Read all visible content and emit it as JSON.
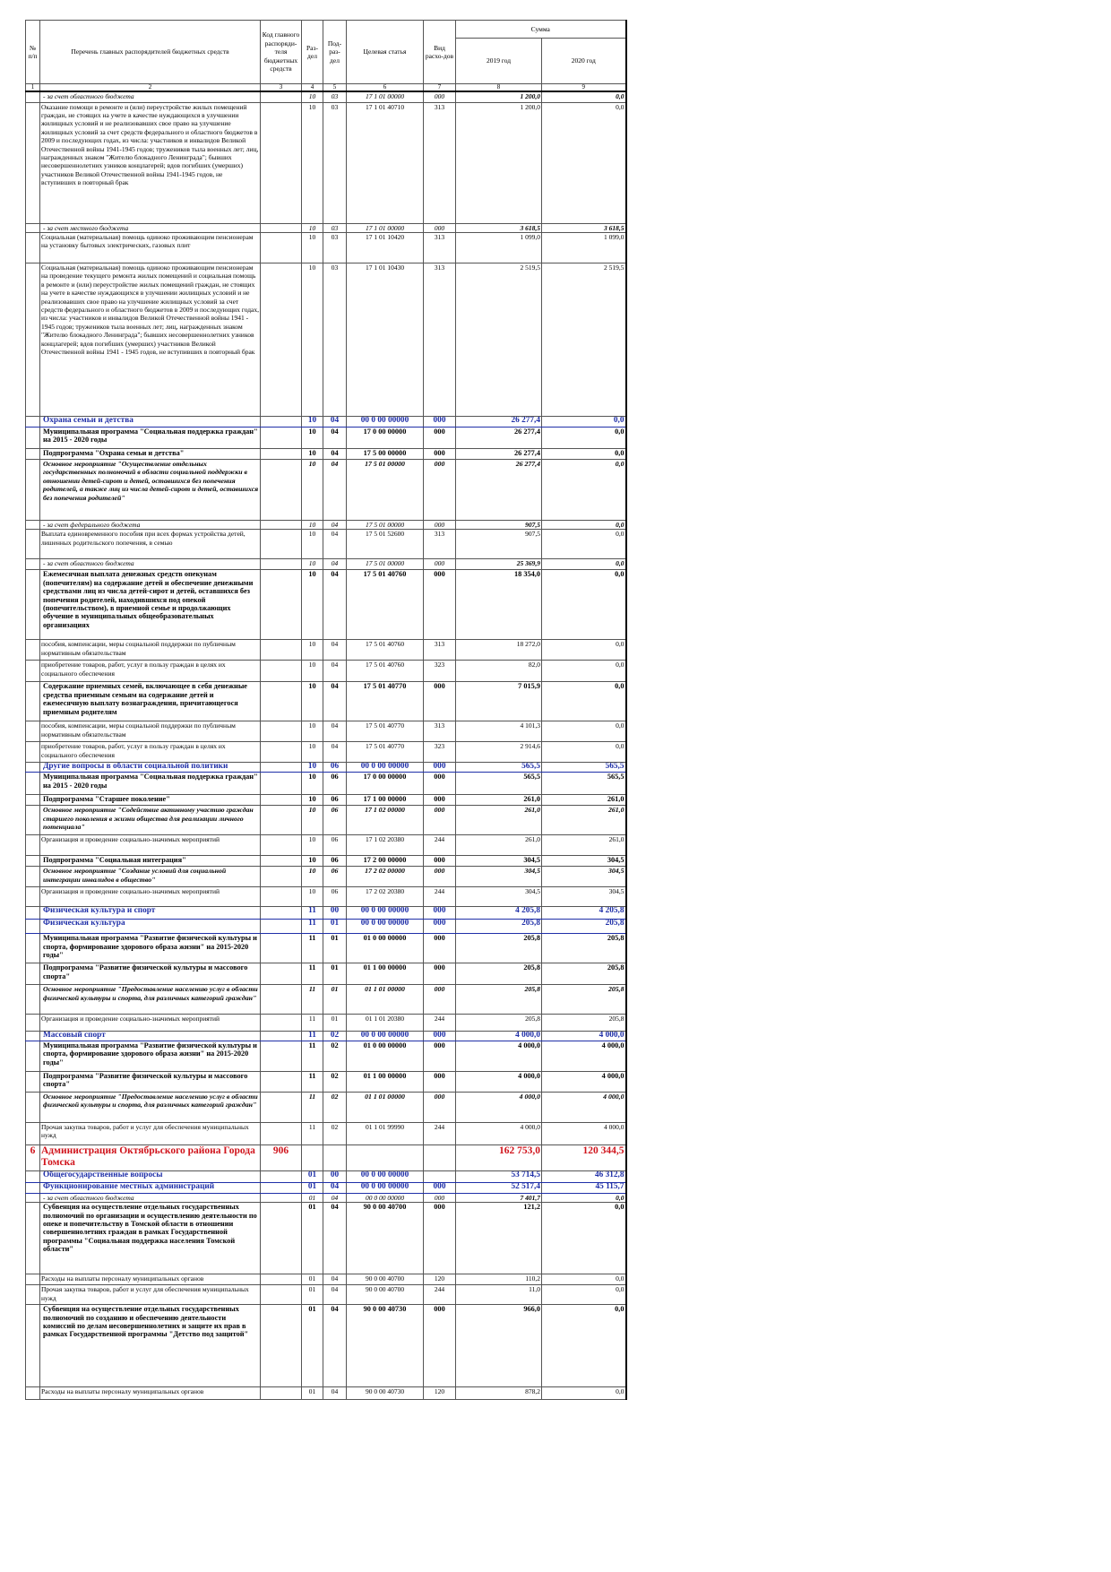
{
  "header": {
    "num": "№ п/п",
    "name": "Перечень главных распорядителей бюджетных средств",
    "kod": "Код главного распоряди-теля бюджетных средств",
    "razdel": "Раз-дел",
    "podrazdel": "Под-раз-дел",
    "target": "Целевая статья",
    "vid": "Вид расхо-дов",
    "sum": "Сумма",
    "y2019": "2019 год",
    "y2020": "2020 год",
    "colnums": [
      "1",
      "2",
      "3",
      "4",
      "5",
      "6",
      "7",
      "8",
      "9"
    ]
  },
  "rows": [
    [
      null,
      "- за счет областного бюджета",
      null,
      "10",
      "03",
      "17 1 01 00000",
      "000",
      "1 200,0",
      "0,0"
    ],
    [
      null,
      "Оказание помощи в ремонте и (или) переустройстве жилых помещений граждан, не стоящих на учете в качестве нуждающихся в улучшении жилищных условий и не реализовавших свое право на улучшение жилищных условий за счет средств федерального и областного бюджетов в 2009 и последующих годах, из числа: участников и инвалидов Великой Отечественной войны 1941-1945 годов; тружеников тыла военных лет; лиц, награжденных знаком \"Жителю блокадного Ленинграда\"; бывших несовершеннолетних узников концлагерей; вдов погибших (умерших) участников Великой Отечественной войны 1941-1945 годов, не вступивших в повторный брак",
      null,
      "10",
      "03",
      "17 1 01 40710",
      "313",
      "1 200,0",
      "0,0"
    ],
    [
      null,
      "- за счет местного бюджета",
      null,
      "10",
      "03",
      "17 1 01 00000",
      "000",
      "3 618,5",
      "3 618,5"
    ],
    [
      null,
      "Социальная (материальная) помощь одиноко проживающим пенсионерам на установку бытовых электрических, газовых плит",
      null,
      "10",
      "03",
      "17 1 01 10420",
      "313",
      "1 099,0",
      "1 099,0"
    ],
    [
      null,
      "Социальная (материальная) помощь одиноко проживающим пенсионерам на проведение текущего ремонта жилых помещений и социальная помощь в ремонте и (или) переустройстве жилых помещений граждан, не стоящих на учете в качестве нуждающихся в улучшении жилищных условий и не реализовавших свое право на улучшение жилищных условий за счет средств федерального и областного бюджетов в 2009 и последующих годах, из числа: участников и инвалидов Великой Отечественной войны 1941 - 1945 годов; тружеников тыла военных лет; лиц, награжденных знаком \"Жителю блокадного Ленинграда\"; бывших несовершеннолетних узников концлагерей; вдов погибших (умерших) участников Великой Отечественной войны 1941 - 1945 годов, не вступивших в повторный брак",
      null,
      "10",
      "03",
      "17 1 01 10430",
      "313",
      "2 519,5",
      "2 519,5"
    ],
    [
      null,
      "Охрана семьи и детства",
      null,
      "10",
      "04",
      "00 0 00 00000",
      "000",
      "26 277,4",
      "0,0"
    ],
    [
      null,
      "Муниципальная программа \"Социальная поддержка граждан\" на 2015 - 2020 годы",
      null,
      "10",
      "04",
      "17 0 00 00000",
      "000",
      "26 277,4",
      "0,0"
    ],
    [
      null,
      "Подпрограмма \"Охрана семьи и детства\"",
      null,
      "10",
      "04",
      "17 5 00 00000",
      "000",
      "26 277,4",
      "0,0"
    ],
    [
      null,
      "Основное мероприятие \"Осуществление отдельных государственных полномочий в области социальной поддержки в отношении детей-сирот и детей, оставшихся без попечения родителей, а также лиц из числа детей-сирот и детей, оставшихся без попечения родителей\"",
      null,
      "10",
      "04",
      "17 5 01 00000",
      "000",
      "26 277,4",
      "0,0"
    ],
    [
      null,
      "- за счет федерального бюджета",
      null,
      "10",
      "04",
      "17 5 01 00000",
      "000",
      "907,5",
      "0,0"
    ],
    [
      null,
      "Выплата единовременного пособия при всех формах устройства детей, лишенных родительского попечения, в семью",
      null,
      "10",
      "04",
      "17 5 01 52600",
      "313",
      "907,5",
      "0,0"
    ],
    [
      null,
      "- за счет областного бюджета",
      null,
      "10",
      "04",
      "17 5 01 00000",
      "000",
      "25 369,9",
      "0,0"
    ],
    [
      null,
      "Ежемесячная выплата денежных средств опекунам (попечителям) на содержание детей и обеспечение денежными средствами лиц из числа детей-сирот и детей, оставшихся без попечения родителей, находившихся под опекой (попечительством), в приемной семье и продолжающих обучение в муниципальных общеобразовательных организациях",
      null,
      "10",
      "04",
      "17 5 01 40760",
      "000",
      "18 354,0",
      "0,0"
    ],
    [
      null,
      "пособия, компенсации, меры социальной поддержки по публичным нормативным обязательствам",
      null,
      "10",
      "04",
      "17 5 01 40760",
      "313",
      "18 272,0",
      "0,0"
    ],
    [
      null,
      "приобретение товаров, работ, услуг в пользу граждан в целях их социального обеспечения",
      null,
      "10",
      "04",
      "17 5 01 40760",
      "323",
      "82,0",
      "0,0"
    ],
    [
      null,
      "Содержание приемных семей, включающее в себя денежные средства приемным семьям на содержание детей и ежемесячную выплату вознаграждения, причитающегося приемным родителям",
      null,
      "10",
      "04",
      "17 5 01 40770",
      "000",
      "7 015,9",
      "0,0"
    ],
    [
      null,
      "пособия, компенсации, меры социальной поддержки по публичным нормативным обязательствам",
      null,
      "10",
      "04",
      "17 5 01 40770",
      "313",
      "4 101,3",
      "0,0"
    ],
    [
      null,
      "приобретение товаров, работ, услуг в пользу граждан в целях их социального обеспечения",
      null,
      "10",
      "04",
      "17 5 01 40770",
      "323",
      "2 914,6",
      "0,0"
    ],
    [
      null,
      "Другие вопросы в области социальной политики",
      null,
      "10",
      "06",
      "00 0 00 00000",
      "000",
      "565,5",
      "565,5"
    ],
    [
      null,
      "Муниципальная программа \"Социальная поддержка граждан\" на 2015 - 2020 годы",
      null,
      "10",
      "06",
      "17 0 00 00000",
      "000",
      "565,5",
      "565,5"
    ],
    [
      null,
      "Подпрограмма \"Старшее поколение\"",
      null,
      "10",
      "06",
      "17 1 00 00000",
      "000",
      "261,0",
      "261,0"
    ],
    [
      null,
      "Основное мероприятие \"Содействие активному участию граждан старшего поколения в жизни общества для реализации личного потенциала\"",
      null,
      "10",
      "06",
      "17 1 02 00000",
      "000",
      "261,0",
      "261,0"
    ],
    [
      null,
      "Организация и проведение социально-значимых мероприятий",
      null,
      "10",
      "06",
      "17 1 02 20380",
      "244",
      "261,0",
      "261,0"
    ],
    [
      null,
      "Подпрограмма \"Социальная интеграция\"",
      null,
      "10",
      "06",
      "17 2 00 00000",
      "000",
      "304,5",
      "304,5"
    ],
    [
      null,
      "Основное мероприятие \"Создание условий для социальной интеграции инвалидов в общество\"",
      null,
      "10",
      "06",
      "17 2 02 00000",
      "000",
      "304,5",
      "304,5"
    ],
    [
      null,
      "Организация и проведение социально-значимых мероприятий",
      null,
      "10",
      "06",
      "17 2 02 20380",
      "244",
      "304,5",
      "304,5"
    ],
    [
      null,
      "Физическая культура и спорт",
      null,
      "11",
      "00",
      "00 0 00 00000",
      "000",
      "4 205,8",
      "4 205,8"
    ],
    [
      null,
      "Физическая культура",
      null,
      "11",
      "01",
      "00 0 00 00000",
      "000",
      "205,8",
      "205,8"
    ],
    [
      null,
      "Муниципальная программа \"Развитие физической культуры и спорта, формирование здорового образа жизни\" на 2015-2020 годы\"",
      null,
      "11",
      "01",
      "01 0 00 00000",
      "000",
      "205,8",
      "205,8"
    ],
    [
      null,
      "Подпрограмма \"Развитие физической культуры и массового спорта\"",
      null,
      "11",
      "01",
      "01 1 00 00000",
      "000",
      "205,8",
      "205,8"
    ],
    [
      null,
      "Основное мероприятие \"Предоставление населению услуг в области физической культуры и спорта, для различных категорий граждан\"",
      null,
      "11",
      "01",
      "01 1 01 00000",
      "000",
      "205,8",
      "205,8"
    ],
    [
      null,
      "Организация и проведение социально-значимых мероприятий",
      null,
      "11",
      "01",
      "01 1 01 20380",
      "244",
      "205,8",
      "205,8"
    ],
    [
      null,
      "Массовый спорт",
      null,
      "11",
      "02",
      "00 0 00 00000",
      "000",
      "4 000,0",
      "4 000,0"
    ],
    [
      null,
      "Муниципальная программа \"Развитие физической культуры и спорта, формирование здорового образа жизни\" на 2015-2020 годы\"",
      null,
      "11",
      "02",
      "01 0 00 00000",
      "000",
      "4 000,0",
      "4 000,0"
    ],
    [
      null,
      "Подпрограмма \"Развитие физической культуры и массового спорта\"",
      null,
      "11",
      "02",
      "01 1 00 00000",
      "000",
      "4 000,0",
      "4 000,0"
    ],
    [
      null,
      "Основное мероприятие \"Предоставление населению услуг в области физической культуры и спорта, для различных категорий граждан\"",
      null,
      "11",
      "02",
      "01 1 01 00000",
      "000",
      "4 000,0",
      "4 000,0"
    ],
    [
      null,
      "Прочая закупка товаров, работ и услуг для обеспечения муниципальных нужд",
      null,
      "11",
      "02",
      "01 1 01 99990",
      "244",
      "4 000,0",
      "4 000,0"
    ],
    [
      "6",
      "Администрация Октябрьского района Города Томска",
      "906",
      null,
      null,
      null,
      null,
      "162 753,0",
      "120 344,5"
    ],
    [
      null,
      "Общегосударственные вопросы",
      null,
      "01",
      "00",
      "00 0 00 00000",
      null,
      "53 714,5",
      "46 312,8"
    ],
    [
      null,
      "Функционирование местных администраций",
      null,
      "01",
      "04",
      "00 0 00 00000",
      "000",
      "52 517,4",
      "45 115,7"
    ],
    [
      null,
      "- за счет областного бюджета",
      null,
      "01",
      "04",
      "00 0 00 00000",
      "000",
      "7 401,7",
      "0,0"
    ],
    [
      null,
      "Субвенция на осуществление отдельных государственных полномочий по организации и осуществлению деятельности по опеке и попечительству в Томской области в отношении совершеннолетних граждан в рамках Государственной программы \"Социальная поддержка населения Томской области\"",
      null,
      "01",
      "04",
      "90 0 00 40700",
      "000",
      "121,2",
      "0,0"
    ],
    [
      null,
      "Расходы на выплаты персоналу муниципальных органов",
      null,
      "01",
      "04",
      "90 0 00 40700",
      "120",
      "110,2",
      "0,0"
    ],
    [
      null,
      "Прочая закупка товаров, работ и услуг для обеспечения муниципальных нужд",
      null,
      "01",
      "04",
      "90 0 00 40700",
      "244",
      "11,0",
      "0,0"
    ],
    [
      null,
      "Субвенция на осуществление отдельных государственных полномочий по созданию и обеспечению деятельности комиссий по делам несовершеннолетних и защите их прав в рамках Государственной программы \"Детство под защитой\"",
      null,
      "01",
      "04",
      "90 0 00 40730",
      "000",
      "966,0",
      "0,0"
    ],
    [
      null,
      "Расходы на выплаты персоналу муниципальных органов",
      null,
      "01",
      "04",
      "90 0 00 40730",
      "120",
      "878,2",
      "0,0"
    ]
  ]
}
